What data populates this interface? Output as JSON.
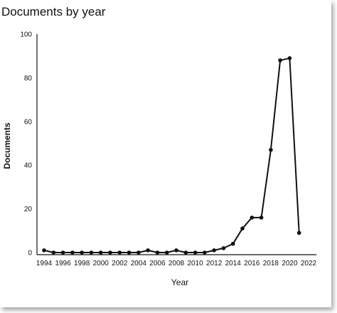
{
  "chart_data": {
    "type": "line",
    "title": "Documents by year",
    "xlabel": "Year",
    "ylabel": "Documents",
    "x": [
      1994,
      1995,
      1996,
      1997,
      1998,
      1999,
      2000,
      2001,
      2002,
      2003,
      2004,
      2005,
      2006,
      2007,
      2008,
      2009,
      2010,
      2011,
      2012,
      2013,
      2014,
      2015,
      2016,
      2017,
      2018,
      2019,
      2020,
      2021
    ],
    "series": [
      {
        "values": [
          1,
          0,
          0,
          0,
          0,
          0,
          0,
          0,
          0,
          0,
          0,
          1,
          0,
          0,
          1,
          0,
          0,
          0,
          1,
          2,
          4,
          11,
          16,
          16,
          47,
          88,
          89,
          9
        ]
      }
    ],
    "xticks": [
      "1994",
      "1996",
      "1998",
      "2000",
      "2002",
      "2004",
      "2006",
      "2008",
      "2010",
      "2012",
      "2014",
      "2016",
      "2018",
      "2020",
      "2022"
    ],
    "yticks": [
      "0",
      "20",
      "40",
      "60",
      "80",
      "100"
    ],
    "xlim": [
      1994,
      2022
    ],
    "ylim": [
      0,
      100
    ],
    "grid": false,
    "line_color": "#111111"
  }
}
